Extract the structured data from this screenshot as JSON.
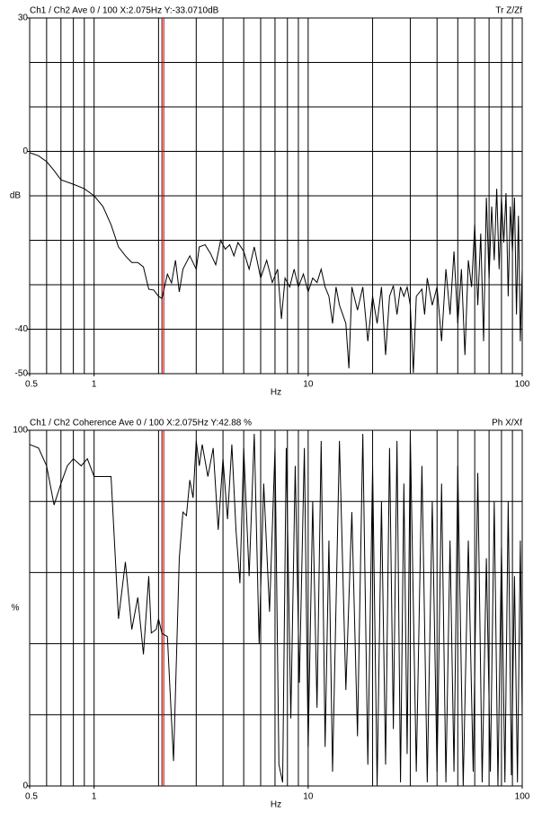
{
  "chart_data": [
    {
      "type": "line",
      "title": "Ch1 / Ch2  Ave 0 / 100  X:2.075Hz  Y:-33.0710dB",
      "corner_label": "Tr Z/Zf",
      "x_label": "Hz",
      "y_label": "dB",
      "log_x": true,
      "color": "#000000",
      "cursor": 2.075,
      "cursor_color": "#cc0000",
      "xlim": [
        0.5,
        100
      ],
      "xticks": [
        0.5,
        1,
        10,
        100
      ],
      "xgrid": [
        0.6,
        0.7,
        0.8,
        0.9,
        1,
        2,
        3,
        4,
        5,
        6,
        7,
        8,
        9,
        10,
        20,
        30,
        40,
        50,
        60,
        70,
        80,
        90
      ],
      "ylim": [
        -50,
        30
      ],
      "yticks": [
        30,
        0,
        -40,
        -50
      ],
      "ygrid": [
        20,
        10,
        0,
        -10,
        -20,
        -30,
        -40
      ],
      "x": [
        0.5,
        0.55,
        0.6,
        0.65,
        0.7,
        0.8,
        0.9,
        1,
        1.1,
        1.2,
        1.3,
        1.4,
        1.5,
        1.6,
        1.7,
        1.8,
        1.9,
        2,
        2.075,
        2.2,
        2.3,
        2.4,
        2.5,
        2.6,
        2.8,
        3,
        3.1,
        3.3,
        3.5,
        3.7,
        3.9,
        4.1,
        4.3,
        4.5,
        4.7,
        5,
        5.3,
        5.6,
        6,
        6.4,
        6.8,
        7.2,
        7.5,
        7.8,
        8.2,
        8.6,
        9,
        9.5,
        10,
        10.5,
        11,
        11.5,
        12,
        12.5,
        13,
        13.5,
        14,
        15,
        15.5,
        16,
        17,
        18,
        19,
        20,
        21,
        22,
        23,
        24,
        25,
        26,
        27,
        28,
        29,
        30,
        31,
        32,
        34,
        35,
        36,
        38,
        40,
        42,
        44,
        46,
        48,
        50,
        52,
        54,
        56,
        58,
        60,
        62,
        64,
        66,
        68,
        70,
        72,
        74,
        76,
        78,
        80,
        82,
        84,
        86,
        88,
        90,
        92,
        94,
        96,
        98,
        100
      ],
      "values": [
        -0.3,
        -1,
        -2.3,
        -4.3,
        -6.4,
        -7.4,
        -8.4,
        -10,
        -12.4,
        -16.5,
        -21.5,
        -23.5,
        -25,
        -25,
        -26,
        -31,
        -31.2,
        -32.6,
        -33.07,
        -27.6,
        -29.6,
        -24.5,
        -31.6,
        -26.5,
        -23.5,
        -26.5,
        -21.5,
        -21,
        -23,
        -25.5,
        -20,
        -22,
        -21,
        -23.5,
        -20.5,
        -22.5,
        -26.5,
        -21.5,
        -28.5,
        -24.5,
        -29.5,
        -26.5,
        -37.7,
        -28.5,
        -30.5,
        -26.5,
        -30.5,
        -27.6,
        -31.6,
        -28.5,
        -29.5,
        -26.5,
        -30.5,
        -32.6,
        -38.7,
        -30.5,
        -34.6,
        -38.7,
        -48.8,
        -30.5,
        -35.7,
        -30.5,
        -42.7,
        -32.6,
        -38.7,
        -30.5,
        -45.8,
        -32.6,
        -30.2,
        -36.7,
        -30.5,
        -32.6,
        -30.5,
        -34.6,
        -49.8,
        -32.6,
        -31,
        -36.7,
        -28.5,
        -34.6,
        -30.5,
        -42.7,
        -26.5,
        -36.7,
        -22.5,
        -38.7,
        -26.5,
        -45.8,
        -24.5,
        -30.5,
        -16.5,
        -34.6,
        -18.5,
        -42.7,
        -10.4,
        -28.5,
        -12.4,
        -24.5,
        -8.4,
        -26.5,
        -10.4,
        -20.5,
        -9.4,
        -32.6,
        -12.4,
        -22.5,
        -10.4,
        -36.7,
        -14.5,
        -42.7,
        -26.5
      ]
    },
    {
      "type": "line",
      "title": "Ch1 / Ch2  Coherence Ave 0 / 100  X:2.075Hz  Y:42.88 %",
      "corner_label": "Ph X/Xf",
      "x_label": "Hz",
      "y_label": "%",
      "log_x": true,
      "color": "#000000",
      "cursor": 2.075,
      "cursor_color": "#cc0000",
      "xlim": [
        0.5,
        100
      ],
      "xticks": [
        0.5,
        1,
        10,
        100
      ],
      "xgrid": [
        0.6,
        0.7,
        0.8,
        0.9,
        1,
        2,
        3,
        4,
        5,
        6,
        7,
        8,
        9,
        10,
        20,
        30,
        40,
        50,
        60,
        70,
        80,
        90
      ],
      "ylim": [
        0,
        100
      ],
      "yticks": [
        100,
        0
      ],
      "ygrid": [
        80,
        60,
        40,
        20
      ],
      "x": [
        0.5,
        0.55,
        0.6,
        0.65,
        0.7,
        0.75,
        0.8,
        0.87,
        0.93,
        1,
        1.2,
        1.3,
        1.4,
        1.5,
        1.6,
        1.7,
        1.8,
        1.85,
        1.95,
        2,
        2.075,
        2.2,
        2.35,
        2.5,
        2.6,
        2.7,
        2.8,
        2.9,
        3,
        3.1,
        3.2,
        3.4,
        3.6,
        3.8,
        4,
        4.2,
        4.4,
        4.6,
        4.8,
        5,
        5.3,
        5.6,
        5.9,
        6.2,
        6.6,
        7,
        7.3,
        7.6,
        7.9,
        8.3,
        8.7,
        9.1,
        9.6,
        10,
        10.5,
        11,
        11.5,
        12,
        12.5,
        13,
        14,
        15,
        16,
        17,
        18,
        19,
        20,
        21,
        22,
        23,
        24,
        25,
        26,
        27,
        28,
        29,
        30,
        32,
        34,
        36,
        38,
        40,
        42,
        44,
        46,
        48,
        50,
        53,
        56,
        59,
        62,
        65,
        68,
        71,
        74,
        77,
        80,
        83,
        86,
        89,
        92,
        95,
        98,
        100
      ],
      "values": [
        96,
        95,
        90,
        79,
        85,
        90,
        92,
        90,
        92,
        87,
        87,
        47,
        63,
        44,
        53,
        37,
        59,
        43,
        44,
        47,
        42.88,
        42,
        7,
        64,
        77,
        76,
        86,
        81,
        97,
        90,
        96,
        87,
        95,
        72,
        92,
        75,
        96,
        72,
        57,
        95,
        59,
        99,
        40,
        85,
        49,
        95,
        6,
        1,
        95,
        19,
        90,
        29,
        95,
        11,
        80,
        22,
        97,
        11,
        69,
        4,
        97,
        27,
        77,
        14,
        99,
        6,
        90,
        0,
        80,
        6,
        95,
        16,
        97,
        1,
        85,
        9,
        99,
        4,
        90,
        1,
        80,
        4,
        85,
        1,
        69,
        4,
        90,
        0,
        69,
        4,
        88,
        1,
        64,
        4,
        80,
        0,
        67,
        1,
        80,
        3,
        59,
        1,
        69,
        19
      ]
    }
  ]
}
